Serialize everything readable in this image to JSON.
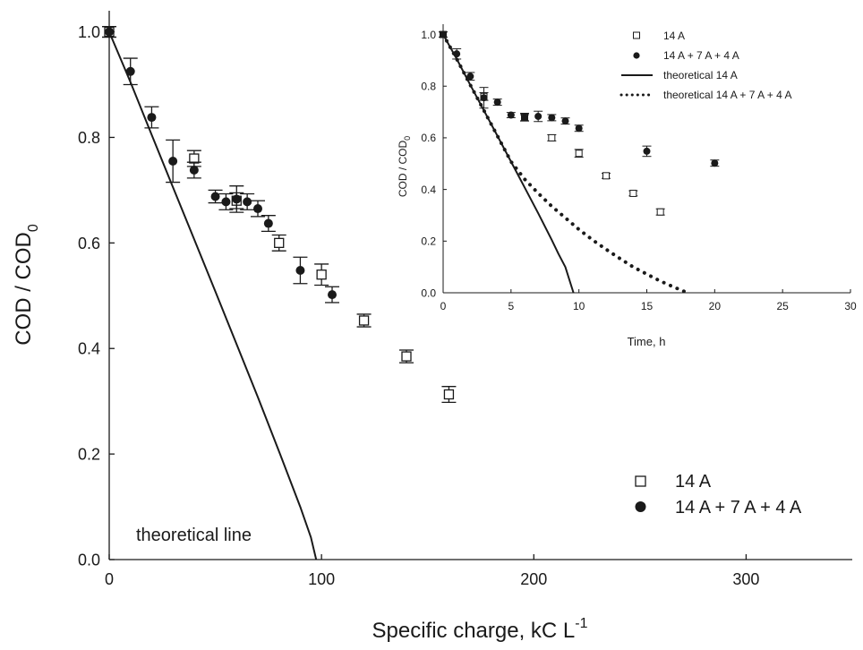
{
  "chart_data": [
    {
      "type": "scatter",
      "title": "",
      "xlabel": "Specific charge, kC L",
      "xlabel_sup": "-1",
      "ylabel": "COD / COD",
      "ylabel_sub": "0",
      "xlim": [
        0,
        350
      ],
      "ylim": [
        0,
        1.04
      ],
      "xticks": [
        0,
        100,
        200,
        300
      ],
      "yticks": [
        0.0,
        0.2,
        0.4,
        0.6,
        0.8,
        1.0
      ],
      "grid": false,
      "legend_position": "bottom-right",
      "annotation": "theoretical line",
      "series": [
        {
          "name": "14 A",
          "marker": "open-square",
          "points": [
            {
              "x": 0,
              "y": 1.0,
              "err": 0.01
            },
            {
              "x": 40,
              "y": 0.76,
              "err": 0.015
            },
            {
              "x": 60,
              "y": 0.68,
              "err": 0.015
            },
            {
              "x": 80,
              "y": 0.6,
              "err": 0.015
            },
            {
              "x": 100,
              "y": 0.54,
              "err": 0.02
            },
            {
              "x": 120,
              "y": 0.453,
              "err": 0.012
            },
            {
              "x": 140,
              "y": 0.385,
              "err": 0.012
            },
            {
              "x": 160,
              "y": 0.313,
              "err": 0.015
            }
          ]
        },
        {
          "name": "14 A + 7 A + 4 A",
          "marker": "filled-circle",
          "points": [
            {
              "x": 0,
              "y": 1.0,
              "err": 0.01
            },
            {
              "x": 10,
              "y": 0.925,
              "err": 0.025
            },
            {
              "x": 20,
              "y": 0.838,
              "err": 0.02
            },
            {
              "x": 30,
              "y": 0.755,
              "err": 0.04
            },
            {
              "x": 40,
              "y": 0.738,
              "err": 0.015
            },
            {
              "x": 50,
              "y": 0.688,
              "err": 0.012
            },
            {
              "x": 55,
              "y": 0.678,
              "err": 0.015
            },
            {
              "x": 60,
              "y": 0.683,
              "err": 0.025
            },
            {
              "x": 65,
              "y": 0.678,
              "err": 0.015
            },
            {
              "x": 70,
              "y": 0.665,
              "err": 0.015
            },
            {
              "x": 75,
              "y": 0.637,
              "err": 0.015
            },
            {
              "x": 90,
              "y": 0.548,
              "err": 0.025
            },
            {
              "x": 105,
              "y": 0.502,
              "err": 0.015
            }
          ]
        },
        {
          "name": "theoretical line",
          "style": "solid-line",
          "x": [
            0,
            10,
            20,
            30,
            40,
            50,
            60,
            70,
            80,
            90,
            95,
            97.5
          ],
          "y": [
            1.0,
            0.905,
            0.805,
            0.706,
            0.607,
            0.508,
            0.408,
            0.308,
            0.205,
            0.1,
            0.042,
            0.0
          ]
        }
      ]
    },
    {
      "type": "scatter",
      "title": "",
      "xlabel": "Time, h",
      "ylabel": "COD / COD",
      "ylabel_sub": "0",
      "xlim": [
        0,
        30
      ],
      "ylim": [
        0,
        1.04
      ],
      "xticks": [
        0,
        5,
        10,
        15,
        20,
        25,
        30
      ],
      "yticks": [
        0.0,
        0.2,
        0.4,
        0.6,
        0.8,
        1.0
      ],
      "grid": false,
      "legend_position": "top-right",
      "series": [
        {
          "name": "14 A",
          "marker": "open-square",
          "points": [
            {
              "x": 0,
              "y": 1.0,
              "err": 0.01
            },
            {
              "x": 3,
              "y": 0.76,
              "err": 0.015
            },
            {
              "x": 6,
              "y": 0.68,
              "err": 0.015
            },
            {
              "x": 8,
              "y": 0.6,
              "err": 0.012
            },
            {
              "x": 10,
              "y": 0.54,
              "err": 0.015
            },
            {
              "x": 12,
              "y": 0.453,
              "err": 0.01
            },
            {
              "x": 14,
              "y": 0.385,
              "err": 0.01
            },
            {
              "x": 16,
              "y": 0.313,
              "err": 0.012
            }
          ]
        },
        {
          "name": "14 A + 7 A + 4 A",
          "marker": "filled-circle",
          "points": [
            {
              "x": 0,
              "y": 1.0,
              "err": 0.01
            },
            {
              "x": 1,
              "y": 0.925,
              "err": 0.02
            },
            {
              "x": 2,
              "y": 0.838,
              "err": 0.015
            },
            {
              "x": 3,
              "y": 0.755,
              "err": 0.04
            },
            {
              "x": 4,
              "y": 0.738,
              "err": 0.012
            },
            {
              "x": 5,
              "y": 0.688,
              "err": 0.01
            },
            {
              "x": 6,
              "y": 0.678,
              "err": 0.012
            },
            {
              "x": 7,
              "y": 0.683,
              "err": 0.02
            },
            {
              "x": 8,
              "y": 0.678,
              "err": 0.012
            },
            {
              "x": 9,
              "y": 0.665,
              "err": 0.012
            },
            {
              "x": 10,
              "y": 0.637,
              "err": 0.012
            },
            {
              "x": 15,
              "y": 0.548,
              "err": 0.02
            },
            {
              "x": 20,
              "y": 0.502,
              "err": 0.012
            }
          ]
        },
        {
          "name": "theoretical 14 A",
          "style": "solid-line",
          "x": [
            0,
            1,
            2,
            3,
            4,
            5,
            6,
            7,
            8,
            8.5,
            9,
            9.6
          ],
          "y": [
            1.0,
            0.905,
            0.805,
            0.706,
            0.607,
            0.508,
            0.408,
            0.308,
            0.205,
            0.15,
            0.1,
            0.0
          ]
        },
        {
          "name": "theoretical 14 A + 7 A + 4 A",
          "style": "dotted-line",
          "x": [
            0,
            1,
            2,
            3,
            4,
            5,
            6,
            7,
            8,
            9,
            10,
            11,
            12,
            13,
            14,
            15,
            16,
            17,
            18
          ],
          "y": [
            1.0,
            0.905,
            0.805,
            0.706,
            0.607,
            0.508,
            0.44,
            0.385,
            0.335,
            0.29,
            0.245,
            0.205,
            0.168,
            0.133,
            0.1,
            0.072,
            0.045,
            0.022,
            0.0
          ]
        }
      ]
    }
  ],
  "colors": {
    "ink": "#1a1a1a",
    "background": "#ffffff"
  }
}
